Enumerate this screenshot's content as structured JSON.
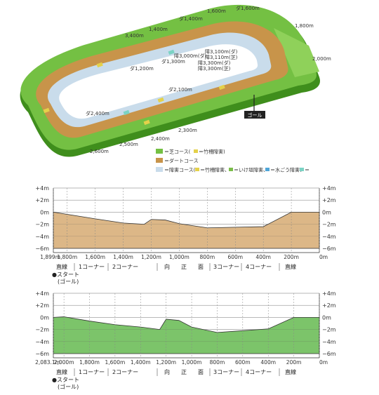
{
  "track": {
    "course_labels": [
      {
        "text": "1,600m"
      },
      {
        "text": "ダ1,600m"
      },
      {
        "text": "ダ1,400m"
      },
      {
        "text": "1,400m"
      },
      {
        "text": "3,400m"
      },
      {
        "text": "1,800m"
      },
      {
        "text": "ダ1,200m"
      },
      {
        "text": "ダ1,300m"
      },
      {
        "text": "障3,000m(ダ)"
      },
      {
        "text": "障3,100m(ダ)"
      },
      {
        "text": "障3,110m(芝)"
      },
      {
        "text": "障3,300m(ダ)"
      },
      {
        "text": "障3,300m(芝)"
      },
      {
        "text": "2,000m"
      },
      {
        "text": "ダ2,100m"
      },
      {
        "text": "ダ2,400m"
      },
      {
        "text": "2,300m"
      },
      {
        "text": "2,400m"
      },
      {
        "text": "2,500m"
      },
      {
        "text": "2,600m"
      }
    ],
    "goal_label": "ゴール",
    "legend": {
      "turf": "＝芝コース(",
      "turf_icon_note": "＝竹柵障害)",
      "dirt": "＝ダートコース",
      "jump": "＝障害コース(",
      "jump_a": "＝竹柵障害、",
      "jump_b": "＝いけ垣障害、",
      "jump_c": "＝水ごう障害、",
      "jump_d": "＝"
    },
    "colors": {
      "turf": "#74c043",
      "turf_dark": "#3f8e1c",
      "dirt": "#c8944a",
      "jump": "#c9dceb"
    }
  },
  "profile_dirt": {
    "y_ticks": [
      "+4m",
      "+2m",
      "0m",
      "−2m",
      "−4m",
      "−6m"
    ],
    "x_ticks": [
      "1,899m",
      "1,800m",
      "1,600m",
      "1,400m",
      "1,200m",
      "1,000m",
      "800m",
      "600m",
      "400m",
      "200m",
      "0m"
    ],
    "sections": [
      "直線",
      "1コーナー",
      "2コーナー",
      "向",
      "正",
      "面",
      "3コーナー",
      "4コーナー",
      "直線"
    ],
    "start_label": "●スタート",
    "goal_label": "(ゴール)",
    "color": "#dcb787",
    "chart_data": {
      "type": "area",
      "xlabel": "",
      "ylabel": "",
      "x": [
        1899,
        1600,
        1400,
        1250,
        1200,
        1100,
        1000,
        800,
        600,
        400,
        200,
        0
      ],
      "values": [
        0,
        -1.1,
        -1.8,
        -2.0,
        -1.2,
        -1.3,
        -1.9,
        -2.6,
        -2.5,
        -2.4,
        0,
        0
      ],
      "xlim": [
        1899,
        0
      ],
      "ylim": [
        -6,
        4
      ]
    }
  },
  "profile_turf": {
    "y_ticks": [
      "+4m",
      "+2m",
      "0m",
      "−2m",
      "−4m",
      "−6m"
    ],
    "x_ticks": [
      "2,083.1m",
      "2,000m",
      "1,800m",
      "1,600m",
      "1,400m",
      "1,200m",
      "1,000m",
      "800m",
      "600m",
      "400m",
      "200m",
      "0m"
    ],
    "sections": [
      "直線",
      "1コーナー",
      "2コーナー",
      "向",
      "正",
      "面",
      "3コーナー",
      "4コーナー",
      "直線"
    ],
    "start_label": "●スタート",
    "goal_label": "(ゴール)",
    "color": "#7cc46a",
    "chart_data": {
      "type": "area",
      "xlabel": "",
      "ylabel": "",
      "x": [
        2083.1,
        2000,
        1800,
        1600,
        1400,
        1250,
        1200,
        1100,
        1000,
        800,
        600,
        400,
        200,
        0
      ],
      "values": [
        0,
        0.1,
        -0.6,
        -1.2,
        -1.6,
        -2.0,
        -0.3,
        -0.5,
        -1.6,
        -2.5,
        -2.2,
        -1.9,
        0,
        0
      ],
      "xlim": [
        2083.1,
        0
      ],
      "ylim": [
        -6,
        4
      ]
    }
  }
}
